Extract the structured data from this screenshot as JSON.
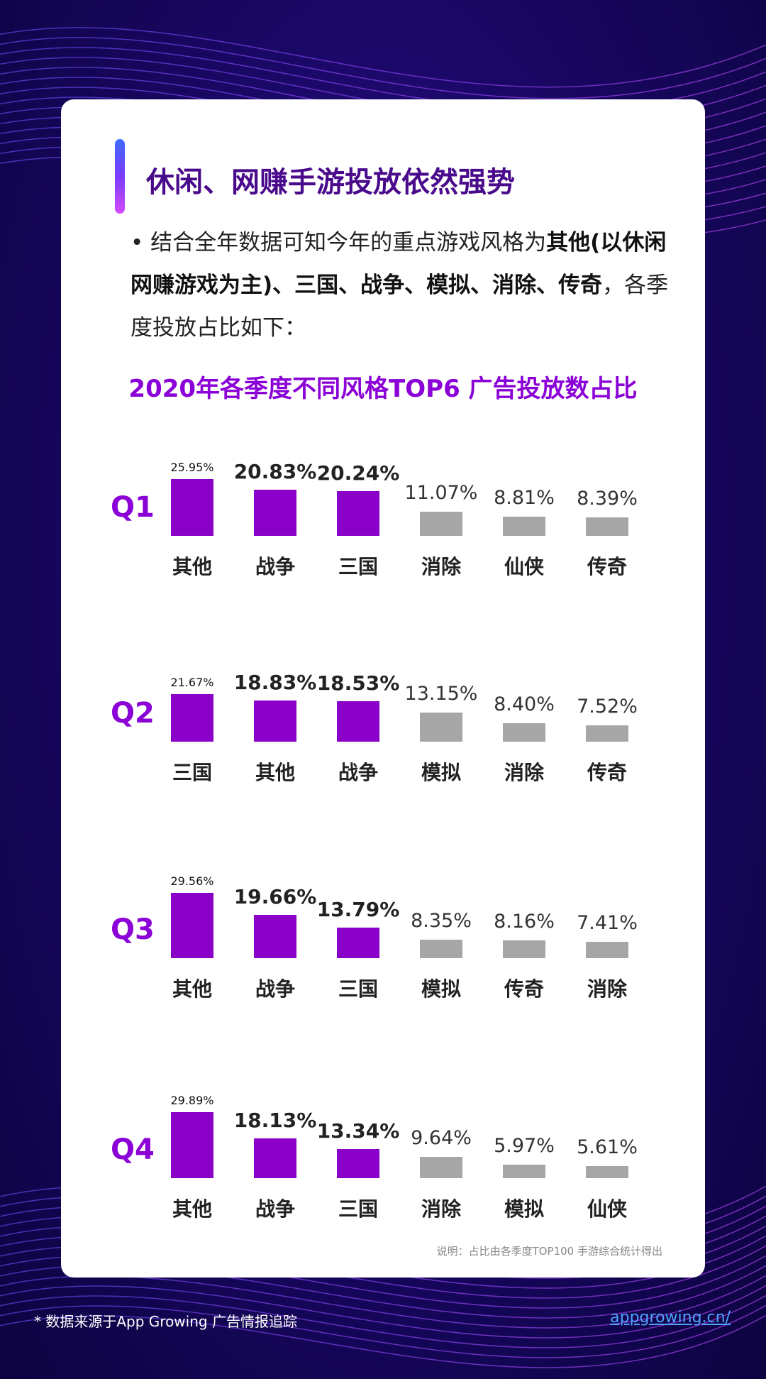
{
  "page_title": "休闲、网赚手游投放依然强势",
  "intro": {
    "bullet": "•",
    "prefix": " 结合全年数据可知今年的重点游戏风格为",
    "bold1": "其他(以休闲网赚游戏为主)、三国、战争、模拟、消除、传奇",
    "suffix": "，各季度投放占比如下："
  },
  "note": "说明：占比由各季度TOP100 手游综合统计得出",
  "footer": {
    "source": "* 数据来源于App Growing 广告情报追踪",
    "link": "appgrowing.cn/"
  },
  "colors": {
    "highlight": "#8b00c9",
    "muted": "#a6a6a6",
    "accent_text": "#8a00d6"
  },
  "chart_data": {
    "type": "bar",
    "title": "2020年各季度不同风格TOP6 广告投放数占比",
    "unit": "%",
    "quarters": [
      {
        "label": "Q1",
        "categories": [
          "其他",
          "战争",
          "三国",
          "消除",
          "仙侠",
          "传奇"
        ],
        "values": [
          25.95,
          20.83,
          20.24,
          11.07,
          8.81,
          8.39
        ],
        "value_labels": [
          "25.95%",
          "20.83%",
          "20.24%",
          "11.07%",
          "8.81%",
          "8.39%"
        ]
      },
      {
        "label": "Q2",
        "categories": [
          "三国",
          "其他",
          "战争",
          "模拟",
          "消除",
          "传奇"
        ],
        "values": [
          21.67,
          18.83,
          18.53,
          13.15,
          8.4,
          7.52
        ],
        "value_labels": [
          "21.67%",
          "18.83%",
          "18.53%",
          "13.15%",
          "8.40%",
          "7.52%"
        ]
      },
      {
        "label": "Q3",
        "categories": [
          "其他",
          "战争",
          "三国",
          "模拟",
          "传奇",
          "消除"
        ],
        "values": [
          29.56,
          19.66,
          13.79,
          8.35,
          8.16,
          7.41
        ],
        "value_labels": [
          "29.56%",
          "19.66%",
          "13.79%",
          "8.35%",
          "8.16%",
          "7.41%"
        ]
      },
      {
        "label": "Q4",
        "categories": [
          "其他",
          "战争",
          "三国",
          "消除",
          "模拟",
          "仙侠"
        ],
        "values": [
          29.89,
          18.13,
          13.34,
          9.64,
          5.97,
          5.61
        ],
        "value_labels": [
          "29.89%",
          "18.13%",
          "13.34%",
          "9.64%",
          "5.97%",
          "5.61%"
        ]
      }
    ],
    "highlighted_count": 3
  }
}
